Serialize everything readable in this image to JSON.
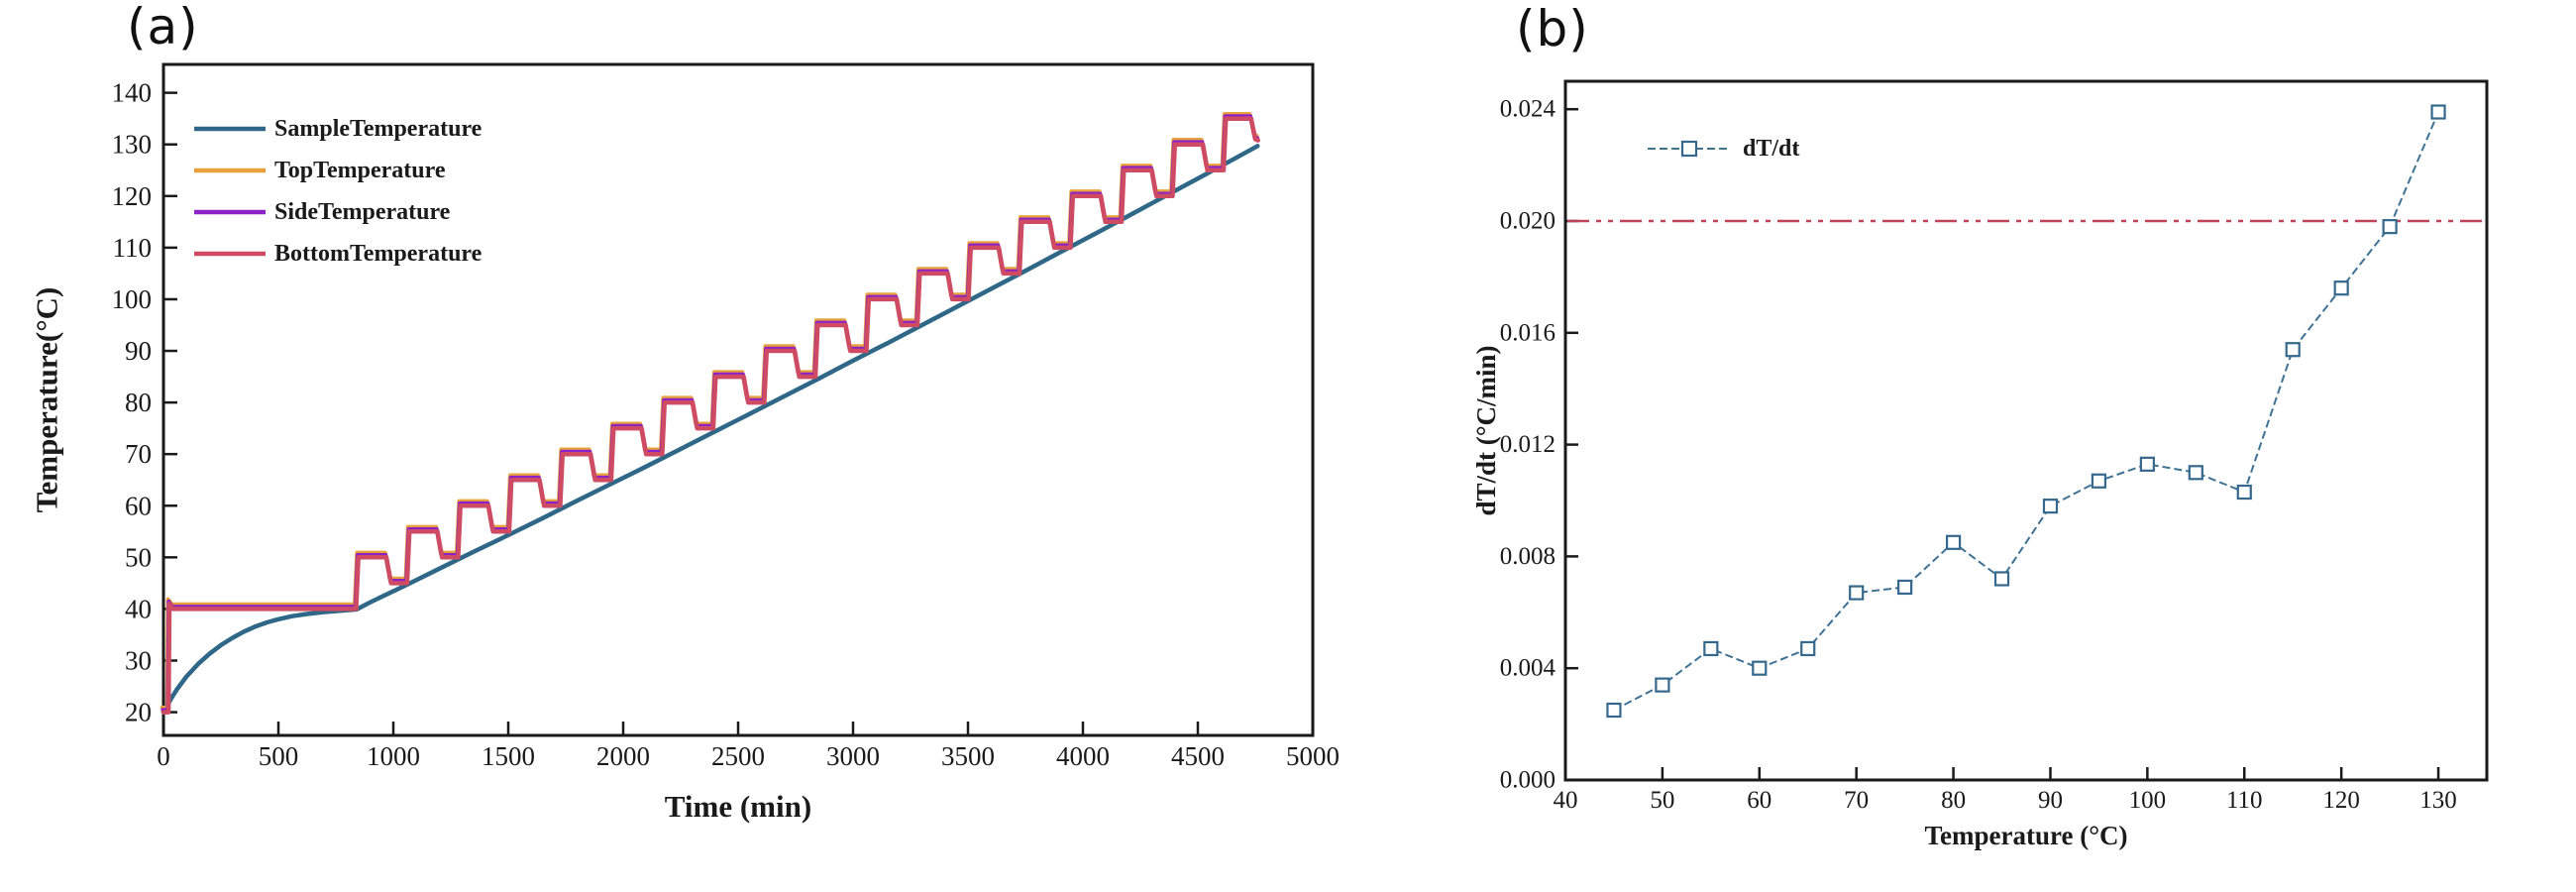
{
  "figure": {
    "panel_a_label": "(a)",
    "panel_b_label": "(b)"
  },
  "colors": {
    "sample": "#2e6787",
    "top": "#e9a23b",
    "side": "#8b21c8",
    "bottom": "#cf4a63",
    "dtdt_line": "#3f7294",
    "dtdt_marker": "#35688c",
    "threshold": "#bf4258",
    "axis": "#1a1a1a",
    "background": "#ffffff"
  },
  "chart_data": [
    {
      "id": "a",
      "type": "line",
      "title": "",
      "xlabel": "Time (min)",
      "ylabel": "Temperature(°C)",
      "xlim": [
        0,
        5000
      ],
      "ylim": [
        15.5,
        145.5
      ],
      "xticks": [
        0,
        500,
        1000,
        1500,
        2000,
        2500,
        3000,
        3500,
        4000,
        4500,
        5000
      ],
      "yticks": [
        20,
        30,
        40,
        50,
        60,
        70,
        80,
        90,
        100,
        110,
        120,
        130,
        140
      ],
      "grid": false,
      "legend_position": "upper-left-inside",
      "legend": [
        "SampleTemperature",
        "TopTemperature",
        "SideTemperature",
        "BottomTemperature"
      ],
      "series": [
        {
          "name": "SampleTemperature",
          "color_key": "sample",
          "width": 4.5,
          "offset": [
            0,
            0
          ],
          "points": [
            [
              0,
              20
            ],
            [
              30,
              22.4
            ],
            [
              60,
              24.5
            ],
            [
              100,
              26.9
            ],
            [
              150,
              29.3
            ],
            [
              200,
              31.3
            ],
            [
              250,
              33.0
            ],
            [
              300,
              34.4
            ],
            [
              350,
              35.6
            ],
            [
              400,
              36.6
            ],
            [
              450,
              37.4
            ],
            [
              500,
              38.0
            ],
            [
              560,
              38.6
            ],
            [
              620,
              39.0
            ],
            [
              700,
              39.4
            ],
            [
              780,
              39.7
            ],
            [
              840,
              39.9
            ],
            [
              900,
              41.3
            ],
            [
              1050,
              44.5
            ],
            [
              1200,
              47.8
            ],
            [
              1350,
              51.1
            ],
            [
              1500,
              54.3
            ],
            [
              1650,
              57.6
            ],
            [
              1800,
              61.0
            ],
            [
              1950,
              64.3
            ],
            [
              2100,
              67.6
            ],
            [
              2250,
              71.0
            ],
            [
              2400,
              74.4
            ],
            [
              2550,
              77.8
            ],
            [
              2700,
              81.2
            ],
            [
              2850,
              84.6
            ],
            [
              3000,
              88.1
            ],
            [
              3150,
              91.5
            ],
            [
              3300,
              95.0
            ],
            [
              3450,
              98.5
            ],
            [
              3600,
              102.0
            ],
            [
              3750,
              105.5
            ],
            [
              3900,
              109.1
            ],
            [
              4050,
              112.6
            ],
            [
              4200,
              116.2
            ],
            [
              4350,
              119.8
            ],
            [
              4500,
              123.4
            ],
            [
              4650,
              127.0
            ],
            [
              4760,
              129.7
            ]
          ]
        },
        {
          "name": "TopTemperature",
          "color_key": "top",
          "width": 4,
          "offset": [
            -6,
            0.9
          ],
          "points": "heater"
        },
        {
          "name": "SideTemperature",
          "color_key": "side",
          "width": 4,
          "offset": [
            -3,
            0.45
          ],
          "points": "heater"
        },
        {
          "name": "BottomTemperature",
          "color_key": "bottom",
          "width": 4.5,
          "offset": [
            0,
            0
          ],
          "points": "heater"
        }
      ],
      "heater_points": [
        [
          0,
          20
        ],
        [
          22,
          20
        ],
        [
          26,
          41
        ],
        [
          42,
          40
        ],
        [
          838,
          40
        ],
        [
          848,
          50
        ],
        [
          970,
          50
        ],
        [
          990,
          45
        ],
        [
          1060,
          45
        ],
        [
          1070,
          55
        ],
        [
          1192,
          55
        ],
        [
          1212,
          50
        ],
        [
          1282,
          50
        ],
        [
          1292,
          60
        ],
        [
          1414,
          60
        ],
        [
          1434,
          55
        ],
        [
          1504,
          55
        ],
        [
          1514,
          65
        ],
        [
          1636,
          65
        ],
        [
          1656,
          60
        ],
        [
          1726,
          60
        ],
        [
          1736,
          70
        ],
        [
          1858,
          70
        ],
        [
          1878,
          65
        ],
        [
          1948,
          65
        ],
        [
          1958,
          75
        ],
        [
          2080,
          75
        ],
        [
          2100,
          70
        ],
        [
          2170,
          70
        ],
        [
          2180,
          80
        ],
        [
          2302,
          80
        ],
        [
          2322,
          75
        ],
        [
          2392,
          75
        ],
        [
          2402,
          85
        ],
        [
          2524,
          85
        ],
        [
          2544,
          80
        ],
        [
          2614,
          80
        ],
        [
          2624,
          90
        ],
        [
          2746,
          90
        ],
        [
          2766,
          85
        ],
        [
          2836,
          85
        ],
        [
          2846,
          95
        ],
        [
          2968,
          95
        ],
        [
          2988,
          90
        ],
        [
          3058,
          90
        ],
        [
          3068,
          100
        ],
        [
          3190,
          100
        ],
        [
          3210,
          95
        ],
        [
          3280,
          95
        ],
        [
          3290,
          105
        ],
        [
          3412,
          105
        ],
        [
          3432,
          100
        ],
        [
          3502,
          100
        ],
        [
          3512,
          110
        ],
        [
          3634,
          110
        ],
        [
          3654,
          105
        ],
        [
          3724,
          105
        ],
        [
          3734,
          115
        ],
        [
          3856,
          115
        ],
        [
          3876,
          110
        ],
        [
          3946,
          110
        ],
        [
          3956,
          120
        ],
        [
          4078,
          120
        ],
        [
          4098,
          115
        ],
        [
          4168,
          115
        ],
        [
          4178,
          125
        ],
        [
          4300,
          125
        ],
        [
          4320,
          120
        ],
        [
          4390,
          120
        ],
        [
          4400,
          130
        ],
        [
          4522,
          130
        ],
        [
          4542,
          125
        ],
        [
          4612,
          125
        ],
        [
          4622,
          135
        ],
        [
          4732,
          135
        ],
        [
          4750,
          131
        ],
        [
          4762,
          130.8
        ]
      ]
    },
    {
      "id": "b",
      "type": "scatter",
      "title": "",
      "xlabel": "Temperature (°C)",
      "ylabel": "dT/dt (°C/min)",
      "xlim": [
        40,
        135
      ],
      "ylim": [
        0,
        0.025
      ],
      "xticks": [
        40,
        50,
        60,
        70,
        80,
        90,
        100,
        110,
        120,
        130
      ],
      "yticks": [
        0,
        0.004,
        0.008,
        0.012,
        0.016,
        0.02,
        0.024
      ],
      "ytick_labels": [
        "0.000",
        "0.004",
        "0.008",
        "0.012",
        "0.016",
        "0.020",
        "0.024"
      ],
      "grid": false,
      "legend_position": "upper-left-inside",
      "legend": [
        "dT/dt"
      ],
      "x": [
        45,
        50,
        55,
        60,
        65,
        70,
        75,
        80,
        85,
        90,
        95,
        100,
        105,
        110,
        115,
        120,
        125,
        130
      ],
      "y": [
        0.0025,
        0.0034,
        0.0047,
        0.004,
        0.0047,
        0.0067,
        0.0069,
        0.0085,
        0.0072,
        0.0098,
        0.0107,
        0.0113,
        0.011,
        0.0103,
        0.0154,
        0.0176,
        0.0198,
        0.0239
      ],
      "threshold_line": 0.02
    }
  ]
}
